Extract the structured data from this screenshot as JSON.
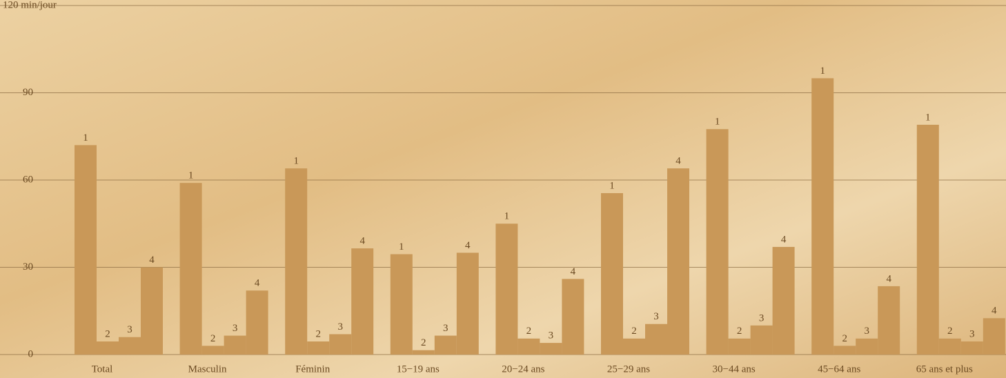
{
  "chart_data": {
    "type": "bar",
    "categories": [
      "Total",
      "Masculin",
      "Féminin",
      "15−19 ans",
      "20−24 ans",
      "25−29 ans",
      "30−44 ans",
      "45−64 ans",
      "65 ans et plus"
    ],
    "series": [
      {
        "name": "1",
        "color": "#c99858",
        "values": [
          72,
          59,
          64,
          34.5,
          45,
          55.5,
          77.5,
          95,
          79
        ]
      },
      {
        "name": "2",
        "color": "#c99858",
        "values": [
          4.5,
          3,
          4.5,
          1.5,
          5.5,
          5.5,
          5.5,
          3,
          5.5
        ]
      },
      {
        "name": "3",
        "color": "#c99858",
        "values": [
          6,
          6.5,
          7,
          6.5,
          4,
          10.5,
          10,
          5.5,
          4.5
        ]
      },
      {
        "name": "4",
        "color": "#c99858",
        "values": [
          30,
          22,
          36.5,
          35,
          26,
          64,
          37,
          23.5,
          12.5
        ]
      }
    ],
    "ylim": [
      0,
      120
    ],
    "yticks": [
      0,
      30,
      60,
      90,
      {
        "value": 120,
        "label": "120 min/jour"
      }
    ],
    "grid": true
  }
}
